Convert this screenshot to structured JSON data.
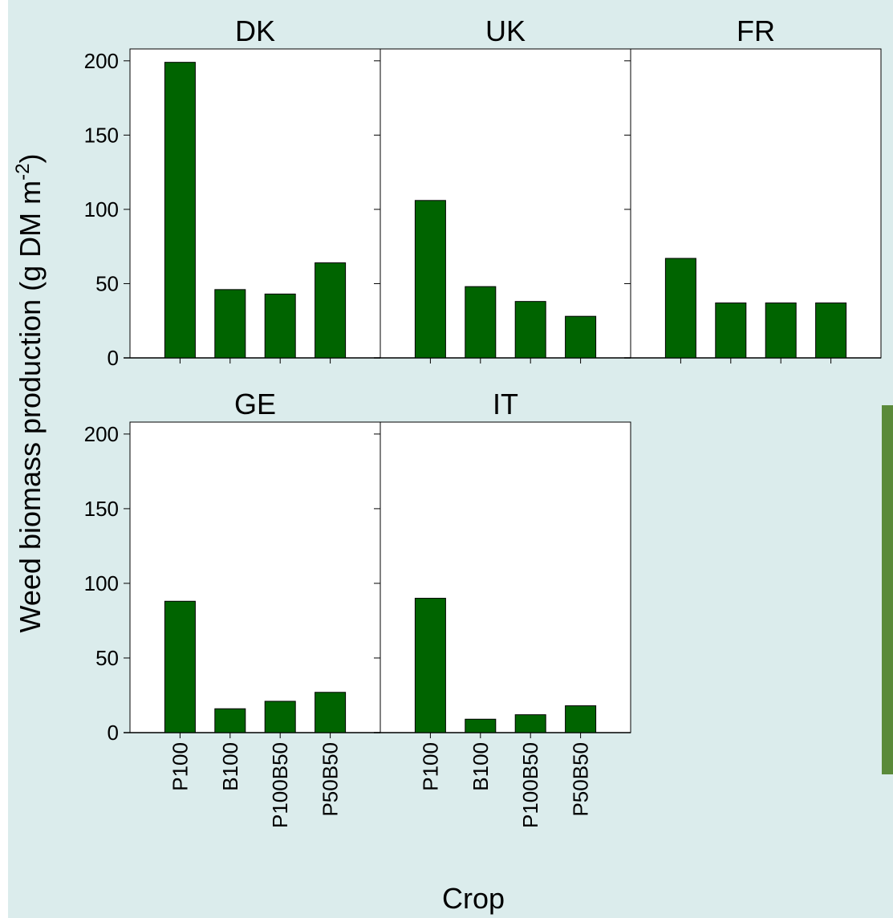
{
  "y_label": {
    "main": "Weed biomass production (g DM m",
    "sup": "-2",
    "end": ")"
  },
  "x_label": "Crop",
  "chart_data": [
    {
      "type": "bar",
      "title": "DK",
      "categories": [
        null,
        null,
        null,
        null
      ],
      "values": [
        199,
        46,
        43,
        64
      ],
      "color": "#006400",
      "ylim": [
        0,
        208
      ],
      "yticks": [
        0,
        50,
        100,
        150,
        200
      ],
      "show_ytick_labels": true
    },
    {
      "type": "bar",
      "title": "UK",
      "categories": [
        null,
        null,
        null,
        null
      ],
      "values": [
        106,
        48,
        38,
        28
      ],
      "color": "#006400",
      "ylim": [
        0,
        208
      ],
      "yticks": [
        0,
        50,
        100,
        150,
        200
      ],
      "show_ytick_labels": false
    },
    {
      "type": "bar",
      "title": "FR",
      "categories": [
        null,
        null,
        null,
        null
      ],
      "values": [
        67,
        37,
        37,
        37
      ],
      "color": "#006400",
      "ylim": [
        0,
        208
      ],
      "yticks": [
        0,
        50,
        100,
        150,
        200
      ],
      "show_ytick_labels": false
    },
    {
      "type": "bar",
      "title": "GE",
      "categories": [
        "P100",
        "B100",
        "P100B50",
        "P50B50"
      ],
      "values": [
        88,
        16,
        21,
        27
      ],
      "color": "#006400",
      "ylim": [
        0,
        208
      ],
      "yticks": [
        0,
        50,
        100,
        150,
        200
      ],
      "show_ytick_labels": true
    },
    {
      "type": "bar",
      "title": "IT",
      "categories": [
        "P100",
        "B100",
        "P100B50",
        "P50B50"
      ],
      "values": [
        90,
        9,
        12,
        18
      ],
      "color": "#006400",
      "ylim": [
        0,
        208
      ],
      "yticks": [
        0,
        50,
        100,
        150,
        200
      ],
      "show_ytick_labels": false
    }
  ]
}
